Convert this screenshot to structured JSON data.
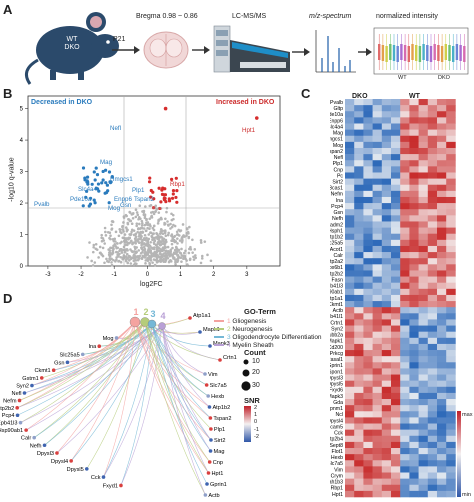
{
  "panelA": {
    "letter": "A",
    "mouse_label_line1": "WT",
    "mouse_label_line2": "DKO",
    "age": "P21",
    "bregma": "Bregma 0.98 ~ 0.86",
    "lcms": "LC-MS/MS",
    "mz": "m/z-spectrum",
    "normint": "normalized intensity",
    "wt_label": "WT",
    "dko_label": "DKO"
  },
  "panelB": {
    "letter": "B",
    "decreased": "Decreased in DKO",
    "increased": "Increased in DKO",
    "xlabel": "log2FC",
    "ylabel": "-log10 q-value",
    "xticks": [
      "-3",
      "-2",
      "-1",
      "0",
      "1",
      "2",
      "3"
    ],
    "yticks": [
      "0",
      "1",
      "2",
      "3",
      "4",
      "5"
    ],
    "labels_blue": [
      "Nefl",
      "Mag",
      "Hmgcs1",
      "Slc4a4",
      "Pde10a",
      "Pvalb",
      "Plp1",
      "Enpp6",
      "Tspan2",
      "Gsn",
      "Mog"
    ],
    "labels_red": [
      "Hpt1",
      "Rbp1"
    ]
  },
  "panelC": {
    "letter": "C",
    "col_dko": "DKO",
    "col_wt": "WT",
    "scale_max": "max",
    "scale_min": "min",
    "genes": [
      "Pvalb",
      "Gltp",
      "Pde10a",
      "Enpp6",
      "Slc4a4",
      "Mag",
      "Hmgcs1",
      "Mog",
      "Tspan2",
      "Nefl",
      "Plp1",
      "Cnp",
      "Pc",
      "Sirt2",
      "Bcas1",
      "Nefm",
      "Ina",
      "Pcp4",
      "Gsn",
      "Nefh",
      "Cadm2",
      "Hsph1",
      "Atp1b2",
      "Slc25a5",
      "Acot1",
      "Calr",
      "Atp2a2",
      "Cox6b1",
      "Atp2b2",
      "Fasn",
      "Epb41l3",
      "Hsp90ab1",
      "Atp1a1",
      "Ckmt1",
      "Actb",
      "Epb41l1",
      "Crtn1",
      "Syn2",
      "Tubb2a",
      "Mapk1",
      "Cd200",
      "Prkcg",
      "Rasal1",
      "Gprin1",
      "Spon1",
      "Dpysl3",
      "Dpysl5",
      "Fxyd6",
      "Mapk3",
      "Gda",
      "Pitpnm1",
      "Ncl",
      "Dpysl4",
      "Icam5",
      "Cck",
      "Atp2b4",
      "Sept8",
      "Flot1",
      "Hexb",
      "Slc7a5",
      "Vim",
      "Crym",
      "Pafah1b3",
      "Rbp1",
      "Hpt1"
    ]
  },
  "panelD": {
    "letter": "D",
    "goterm_title": "GO-Term",
    "goterms": [
      {
        "n": "1",
        "name": "Gliogenesis",
        "color": "#f4a3a0"
      },
      {
        "n": "2",
        "name": "Neurogenesis",
        "color": "#b5cc7a"
      },
      {
        "n": "3",
        "name": "Oligodendrocyte Differentiation",
        "color": "#74b8d6"
      },
      {
        "n": "4",
        "name": "Myelin Sheath",
        "color": "#b9a0d6"
      }
    ],
    "count_title": "Count",
    "count_values": [
      "10",
      "20",
      "30"
    ],
    "snr_title": "SNR",
    "snr_ticks": [
      "2",
      "1",
      "0",
      "-1",
      "-2"
    ],
    "genes_left": [
      "Mog",
      "Ina",
      "Slc25a5",
      "Gsn",
      "Ckmt1",
      "Gstm1",
      "Syn2",
      "Nefl",
      "Nefm",
      "Atp2b2",
      "Pcp4",
      "Epb41l3",
      "Hsp90ab1",
      "Calr",
      "Nefh",
      "Dpysl3",
      "Dpysl4",
      "Dpysl5",
      "Cck",
      "Fxyd1"
    ],
    "genes_top": [
      "Atp1a1",
      "Mapk1",
      "Mapk3",
      "Crtn1"
    ],
    "genes_right": [
      "Vim",
      "Slc7a5",
      "Hexb",
      "Atp1b2",
      "Tspan2",
      "Plp1",
      "Sirt2",
      "Mag",
      "Cnp",
      "Hpt1",
      "Gprin1",
      "Actb"
    ]
  }
}
